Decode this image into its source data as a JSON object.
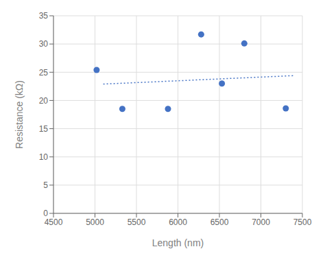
{
  "chart_data": {
    "type": "scatter",
    "xlabel": "Length (nm)",
    "ylabel": "Resistance (kΩ)",
    "xlim": [
      4500,
      7500
    ],
    "ylim": [
      0,
      35
    ],
    "xticks": [
      4500,
      5000,
      5500,
      6000,
      6500,
      7000,
      7500
    ],
    "yticks": [
      0,
      5,
      10,
      15,
      20,
      25,
      30,
      35
    ],
    "grid": true,
    "series": [
      {
        "type": "scatter",
        "marker": "circle",
        "color": "#4472C4",
        "x": [
          5020,
          5330,
          5880,
          6280,
          6530,
          6800,
          7300
        ],
        "values": [
          25.4,
          18.5,
          18.5,
          31.7,
          23.0,
          30.1,
          18.6
        ]
      },
      {
        "type": "line",
        "line_style": "dotted",
        "color": "#4472C4",
        "x": [
          5100,
          7400
        ],
        "values": [
          22.9,
          24.4
        ]
      }
    ]
  }
}
